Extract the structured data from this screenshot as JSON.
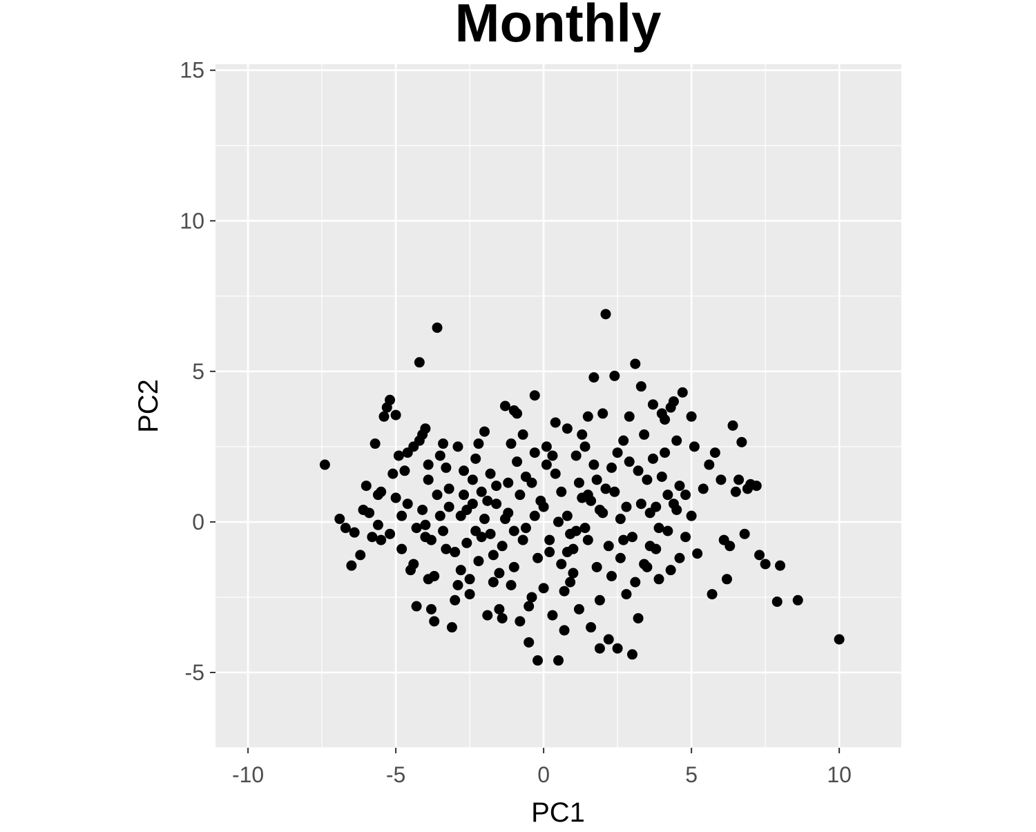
{
  "chart_data": {
    "type": "scatter",
    "title": "Monthly",
    "xlabel": "PC1",
    "ylabel": "PC2",
    "xlim": [
      -11.1,
      12.1
    ],
    "ylim": [
      -7.5,
      15.2
    ],
    "x_ticks": [
      -10,
      -5,
      0,
      5,
      10
    ],
    "x_tick_labels": [
      "-10",
      "-5",
      "0",
      "5",
      "10"
    ],
    "y_ticks": [
      -5,
      0,
      5,
      10,
      15
    ],
    "y_tick_labels": [
      "-5",
      "0",
      "5",
      "10",
      "15"
    ],
    "grid": true,
    "legend": "none",
    "colors": {
      "panel": "#ebebeb",
      "grid": "#ffffff",
      "point": "#000000"
    },
    "points": [
      [
        -7.4,
        1.9
      ],
      [
        -6.9,
        0.1
      ],
      [
        -6.7,
        -0.2
      ],
      [
        -6.5,
        -1.45
      ],
      [
        -6.4,
        -0.35
      ],
      [
        -6.2,
        -1.1
      ],
      [
        -6.1,
        0.4
      ],
      [
        -6.0,
        1.2
      ],
      [
        -5.9,
        0.3
      ],
      [
        -5.8,
        -0.5
      ],
      [
        -5.7,
        2.6
      ],
      [
        -5.6,
        -0.1
      ],
      [
        -5.5,
        -0.6
      ],
      [
        -5.5,
        1.0
      ],
      [
        -5.4,
        3.5
      ],
      [
        -5.3,
        3.8
      ],
      [
        -5.2,
        4.05
      ],
      [
        -5.1,
        1.6
      ],
      [
        -5.0,
        3.55
      ],
      [
        -5.0,
        0.8
      ],
      [
        -4.9,
        2.2
      ],
      [
        -4.8,
        0.2
      ],
      [
        -4.7,
        1.7
      ],
      [
        -4.6,
        2.3
      ],
      [
        -4.5,
        -1.6
      ],
      [
        -4.4,
        2.5
      ],
      [
        -4.3,
        -2.8
      ],
      [
        -4.2,
        2.7
      ],
      [
        -4.2,
        5.3
      ],
      [
        -4.1,
        2.9
      ],
      [
        -4.0,
        3.1
      ],
      [
        -4.0,
        -0.5
      ],
      [
        -3.9,
        1.9
      ],
      [
        -3.9,
        -1.9
      ],
      [
        -3.8,
        -2.9
      ],
      [
        -3.7,
        -3.3
      ],
      [
        -3.6,
        6.45
      ],
      [
        -3.5,
        2.2
      ],
      [
        -3.4,
        2.6
      ],
      [
        -3.3,
        -0.9
      ],
      [
        -3.2,
        1.1
      ],
      [
        -3.1,
        -3.5
      ],
      [
        -3.0,
        -2.6
      ],
      [
        -2.9,
        2.5
      ],
      [
        -2.8,
        -1.6
      ],
      [
        -2.7,
        1.7
      ],
      [
        -2.6,
        0.4
      ],
      [
        -2.5,
        -2.4
      ],
      [
        -2.4,
        1.4
      ],
      [
        -2.3,
        -0.3
      ],
      [
        -2.2,
        2.6
      ],
      [
        -2.1,
        1.0
      ],
      [
        -2.0,
        3.0
      ],
      [
        -1.9,
        -3.1
      ],
      [
        -1.8,
        1.6
      ],
      [
        -1.7,
        -1.1
      ],
      [
        -1.6,
        0.6
      ],
      [
        -1.5,
        -2.9
      ],
      [
        -1.4,
        -3.2
      ],
      [
        -1.3,
        3.85
      ],
      [
        -1.2,
        1.3
      ],
      [
        -1.1,
        -2.1
      ],
      [
        -1.0,
        3.7
      ],
      [
        -1.0,
        -0.3
      ],
      [
        -0.9,
        3.6
      ],
      [
        -0.8,
        -3.3
      ],
      [
        -0.7,
        2.9
      ],
      [
        -0.6,
        1.5
      ],
      [
        -0.5,
        -4.0
      ],
      [
        -0.4,
        -2.5
      ],
      [
        -0.3,
        4.2
      ],
      [
        -0.3,
        2.3
      ],
      [
        -0.2,
        -4.6
      ],
      [
        -0.1,
        0.7
      ],
      [
        0.0,
        -2.2
      ],
      [
        0.1,
        2.5
      ],
      [
        0.2,
        -1.0
      ],
      [
        0.3,
        -3.1
      ],
      [
        0.4,
        3.3
      ],
      [
        0.5,
        -4.6
      ],
      [
        0.6,
        1.0
      ],
      [
        0.7,
        -3.6
      ],
      [
        0.8,
        3.1
      ],
      [
        0.9,
        -0.4
      ],
      [
        1.0,
        -1.7
      ],
      [
        1.1,
        2.2
      ],
      [
        1.2,
        -2.9
      ],
      [
        1.3,
        0.8
      ],
      [
        1.4,
        2.5
      ],
      [
        1.5,
        -0.6
      ],
      [
        1.5,
        3.5
      ],
      [
        1.6,
        -3.5
      ],
      [
        1.7,
        4.8
      ],
      [
        1.8,
        1.4
      ],
      [
        1.9,
        -4.2
      ],
      [
        2.0,
        3.6
      ],
      [
        2.1,
        6.9
      ],
      [
        2.2,
        -3.9
      ],
      [
        2.3,
        1.8
      ],
      [
        2.4,
        4.85
      ],
      [
        2.5,
        -4.2
      ],
      [
        2.6,
        0.1
      ],
      [
        2.7,
        2.7
      ],
      [
        2.8,
        -2.4
      ],
      [
        2.9,
        3.5
      ],
      [
        3.0,
        -4.4
      ],
      [
        3.1,
        5.25
      ],
      [
        3.2,
        -3.2
      ],
      [
        3.3,
        4.5
      ],
      [
        3.4,
        2.9
      ],
      [
        3.5,
        1.4
      ],
      [
        3.6,
        -0.8
      ],
      [
        3.7,
        3.9
      ],
      [
        3.8,
        0.5
      ],
      [
        3.9,
        -1.9
      ],
      [
        4.0,
        3.6
      ],
      [
        4.1,
        3.4
      ],
      [
        4.2,
        0.9
      ],
      [
        4.3,
        3.8
      ],
      [
        4.4,
        4.0
      ],
      [
        4.5,
        2.7
      ],
      [
        4.6,
        1.2
      ],
      [
        4.7,
        4.3
      ],
      [
        4.8,
        -0.5
      ],
      [
        5.0,
        3.5
      ],
      [
        5.1,
        2.5
      ],
      [
        5.2,
        -1.05
      ],
      [
        5.4,
        1.1
      ],
      [
        5.6,
        1.9
      ],
      [
        5.8,
        2.3
      ],
      [
        5.7,
        -2.4
      ],
      [
        6.0,
        1.4
      ],
      [
        6.1,
        -0.6
      ],
      [
        6.2,
        -1.9
      ],
      [
        6.3,
        -0.8
      ],
      [
        6.4,
        3.2
      ],
      [
        6.5,
        1.0
      ],
      [
        6.6,
        1.4
      ],
      [
        6.7,
        2.65
      ],
      [
        6.8,
        -0.4
      ],
      [
        6.9,
        1.1
      ],
      [
        7.0,
        1.25
      ],
      [
        7.2,
        1.2
      ],
      [
        7.3,
        -1.1
      ],
      [
        7.5,
        -1.4
      ],
      [
        7.9,
        -2.65
      ],
      [
        8.0,
        -1.45
      ],
      [
        8.6,
        -2.6
      ],
      [
        10.0,
        -3.9
      ],
      [
        -5.2,
        -0.4
      ],
      [
        -4.8,
        -0.9
      ],
      [
        -4.6,
        0.6
      ],
      [
        -4.3,
        -0.2
      ],
      [
        -4.1,
        0.4
      ],
      [
        -3.8,
        -0.6
      ],
      [
        -3.6,
        0.9
      ],
      [
        -3.4,
        -0.3
      ],
      [
        -3.2,
        0.5
      ],
      [
        -3.0,
        -1.0
      ],
      [
        -2.8,
        0.2
      ],
      [
        -2.6,
        -0.7
      ],
      [
        -2.4,
        0.6
      ],
      [
        -2.2,
        -1.3
      ],
      [
        -2.0,
        0.1
      ],
      [
        -1.8,
        -0.4
      ],
      [
        -1.6,
        1.2
      ],
      [
        -1.4,
        -0.8
      ],
      [
        -1.2,
        0.3
      ],
      [
        -1.0,
        -1.5
      ],
      [
        -0.8,
        0.9
      ],
      [
        -0.6,
        -0.2
      ],
      [
        -0.4,
        1.3
      ],
      [
        -0.2,
        -1.2
      ],
      [
        0.0,
        0.5
      ],
      [
        0.2,
        -0.6
      ],
      [
        0.4,
        1.6
      ],
      [
        0.6,
        -1.4
      ],
      [
        0.8,
        0.2
      ],
      [
        1.0,
        -0.9
      ],
      [
        1.2,
        1.3
      ],
      [
        1.4,
        -0.2
      ],
      [
        1.6,
        0.7
      ],
      [
        1.8,
        -1.5
      ],
      [
        2.0,
        0.3
      ],
      [
        2.2,
        -0.8
      ],
      [
        2.4,
        1.0
      ],
      [
        2.6,
        -1.2
      ],
      [
        2.8,
        0.5
      ],
      [
        3.0,
        -0.5
      ],
      [
        3.2,
        1.7
      ],
      [
        3.4,
        -1.4
      ],
      [
        3.6,
        0.3
      ],
      [
        3.8,
        -0.9
      ],
      [
        4.0,
        1.5
      ],
      [
        4.2,
        -0.3
      ],
      [
        4.4,
        0.6
      ],
      [
        4.6,
        -1.2
      ],
      [
        4.8,
        0.9
      ],
      [
        5.0,
        0.2
      ],
      [
        -3.9,
        1.4
      ],
      [
        -3.3,
        1.8
      ],
      [
        -2.9,
        -2.1
      ],
      [
        -2.3,
        2.1
      ],
      [
        -1.7,
        -2.0
      ],
      [
        -1.1,
        2.6
      ],
      [
        -0.5,
        -2.8
      ],
      [
        0.1,
        1.9
      ],
      [
        0.7,
        -2.3
      ],
      [
        1.3,
        2.9
      ],
      [
        1.9,
        -2.6
      ],
      [
        2.5,
        2.3
      ],
      [
        3.1,
        -2.0
      ],
      [
        3.7,
        2.1
      ],
      [
        4.3,
        -1.6
      ],
      [
        -4.4,
        -1.4
      ],
      [
        -3.7,
        -1.8
      ],
      [
        -2.5,
        -1.9
      ],
      [
        -1.5,
        -1.7
      ],
      [
        -0.9,
        2.0
      ],
      [
        0.3,
        2.2
      ],
      [
        0.9,
        -2.0
      ],
      [
        1.7,
        1.9
      ],
      [
        2.3,
        -1.8
      ],
      [
        2.9,
        2.0
      ],
      [
        3.5,
        -1.5
      ],
      [
        4.1,
        2.3
      ],
      [
        -5.6,
        0.9
      ],
      [
        -4.0,
        -0.1
      ],
      [
        -2.7,
        0.9
      ],
      [
        -1.3,
        0.1
      ],
      [
        0.5,
        0.0
      ],
      [
        1.9,
        0.4
      ],
      [
        3.3,
        0.6
      ],
      [
        4.5,
        0.4
      ],
      [
        -3.5,
        0.2
      ],
      [
        -0.7,
        -0.6
      ],
      [
        1.1,
        -0.3
      ],
      [
        2.7,
        -0.6
      ],
      [
        -2.1,
        -0.5
      ],
      [
        -0.3,
        0.2
      ],
      [
        1.5,
        0.9
      ],
      [
        3.9,
        -0.2
      ],
      [
        -1.9,
        0.7
      ],
      [
        0.8,
        -1.0
      ],
      [
        2.1,
        1.1
      ]
    ]
  }
}
